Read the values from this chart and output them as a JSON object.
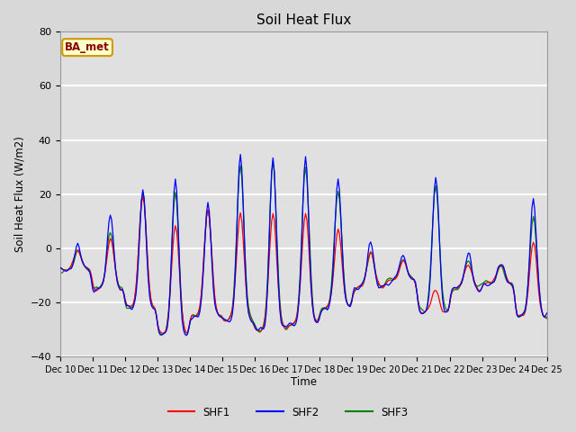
{
  "title": "Soil Heat Flux",
  "ylabel": "Soil Heat Flux (W/m2)",
  "xlabel": "Time",
  "ylim": [
    -40,
    80
  ],
  "xlim": [
    0,
    360
  ],
  "fig_width": 6.4,
  "fig_height": 4.8,
  "dpi": 100,
  "bg_color": "#d8d8d8",
  "plot_bg_color": "#e0e0e0",
  "grid_color": "#ffffff",
  "annotation_text": "BA_met",
  "annotation_bg": "#ffffcc",
  "annotation_border": "#cc9900",
  "annotation_text_color": "#880000",
  "x_tick_labels": [
    "Dec 10",
    "Dec 11",
    "Dec 12",
    "Dec 13",
    "Dec 14",
    "Dec 15",
    "Dec 16",
    "Dec 17",
    "Dec 18",
    "Dec 19",
    "Dec 20",
    "Dec 21",
    "Dec 22",
    "Dec 23",
    "Dec 24",
    "Dec 25"
  ],
  "yticks": [
    -40,
    -20,
    0,
    20,
    40,
    60,
    80
  ],
  "n_points": 360,
  "shf1_color": "red",
  "shf2_color": "blue",
  "shf3_color": "green",
  "linewidth": 0.9
}
